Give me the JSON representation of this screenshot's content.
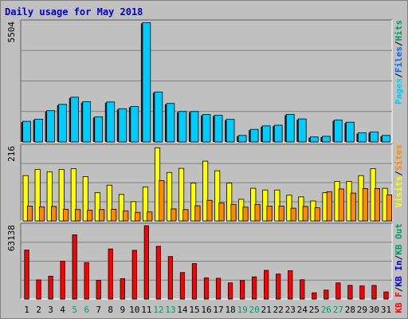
{
  "colors": {
    "background": "#c0c0c0",
    "title": "#0000cc",
    "plot_bg": "#c0c0c0",
    "grid": "#808080",
    "pages": "#00ccff",
    "pages_shadow": "#1a1a1a",
    "files": "#0066ff",
    "hits": "#009966",
    "visits": "#ffff00",
    "sites": "#ff8800",
    "kb_f": "#ff0000",
    "kb_in": "#0000cc",
    "kb_out": "#009966",
    "weekend_label": "#009966",
    "weekday_label": "#000000",
    "separator": "#000000"
  },
  "chart_data": [
    {
      "id": "top",
      "type": "bar",
      "title": "Daily usage for May 2018",
      "ymax_label": "5504",
      "ylim": [
        0,
        5504
      ],
      "grid": true,
      "legend": [
        {
          "name": "Pages",
          "colorKey": "pages"
        },
        {
          "name": "/",
          "colorKey": "separator"
        },
        {
          "name": "Files",
          "colorKey": "files"
        },
        {
          "name": "/",
          "colorKey": "separator"
        },
        {
          "name": "Hits",
          "colorKey": "hits"
        }
      ],
      "series": [
        {
          "colorKey": "pages",
          "values": [
            950,
            1050,
            1440,
            1730,
            2060,
            1850,
            1160,
            1840,
            1530,
            1630,
            5490,
            2300,
            1770,
            1400,
            1400,
            1260,
            1230,
            1040,
            300,
            580,
            740,
            770,
            1270,
            1060,
            230,
            260,
            1010,
            910,
            420,
            460,
            300
          ]
        }
      ]
    },
    {
      "id": "mid",
      "type": "bar",
      "ymax_label": "216",
      "ylim": [
        0,
        216
      ],
      "grid": true,
      "legend": [
        {
          "name": "Visits",
          "colorKey": "visits"
        },
        {
          "name": "/",
          "colorKey": "separator"
        },
        {
          "name": "Sites",
          "colorKey": "sites"
        }
      ],
      "series": [
        {
          "colorKey": "visits",
          "values": [
            132,
            150,
            143,
            150,
            152,
            129,
            82,
            104,
            77,
            56,
            99,
            213,
            141,
            153,
            110,
            174,
            146,
            110,
            63,
            95,
            90,
            90,
            75,
            70,
            58,
            82,
            115,
            115,
            132,
            152,
            95
          ]
        },
        {
          "colorKey": "sites",
          "values": [
            43,
            41,
            42,
            34,
            33,
            31,
            33,
            34,
            29,
            25,
            26,
            117,
            35,
            33,
            44,
            60,
            52,
            48,
            40,
            48,
            43,
            43,
            37,
            42,
            38,
            85,
            93,
            81,
            94,
            94,
            76
          ]
        }
      ]
    },
    {
      "id": "bot",
      "type": "bar",
      "ymax_label": "63138",
      "ylim": [
        0,
        63138
      ],
      "grid": true,
      "legend": [
        {
          "name": "KB F",
          "colorKey": "kb_f"
        },
        {
          "name": "/",
          "colorKey": "separator"
        },
        {
          "name": "KB In",
          "colorKey": "kb_in"
        },
        {
          "name": "/",
          "colorKey": "separator"
        },
        {
          "name": "KB Out",
          "colorKey": "kb_out"
        }
      ],
      "series": [
        {
          "colorKey": "kb_f",
          "values": [
            42200,
            16500,
            19700,
            32600,
            55300,
            31400,
            16100,
            43100,
            17600,
            41900,
            63100,
            45400,
            36600,
            22800,
            30500,
            18300,
            17900,
            13900,
            15900,
            19100,
            24700,
            21500,
            24400,
            16600,
            5400,
            7700,
            13900,
            11800,
            11400,
            11700,
            6100
          ]
        }
      ]
    }
  ],
  "x_days": [
    "1",
    "2",
    "3",
    "4",
    "5",
    "6",
    "7",
    "8",
    "9",
    "10",
    "11",
    "12",
    "13",
    "14",
    "15",
    "16",
    "17",
    "18",
    "19",
    "20",
    "21",
    "22",
    "23",
    "24",
    "25",
    "26",
    "27",
    "28",
    "29",
    "30",
    "31"
  ],
  "weekend_days": [
    5,
    6,
    12,
    13,
    19,
    20,
    26,
    27
  ]
}
